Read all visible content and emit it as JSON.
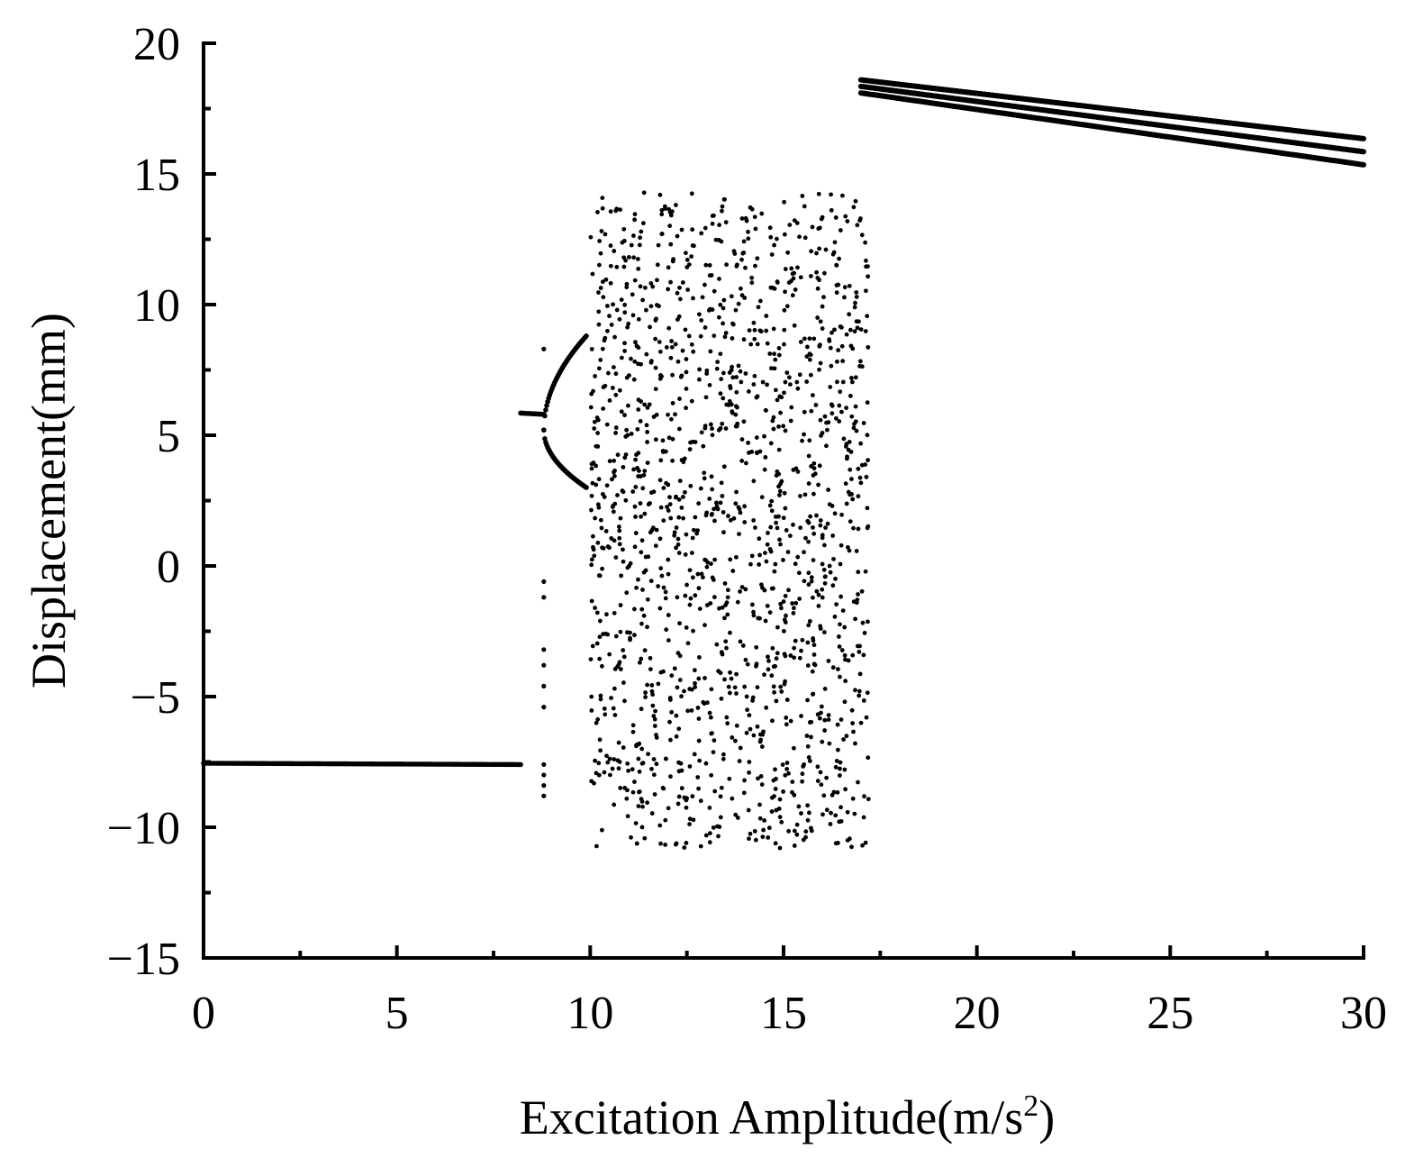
{
  "chart_data": {
    "type": "scatter",
    "title": "",
    "xlabel_main": "Excitation Amplitude(m/s",
    "xlabel_sup": "2",
    "xlabel_close": ")",
    "ylabel": "Displacement(mm)",
    "xlim": [
      0,
      30
    ],
    "ylim": [
      -15,
      20
    ],
    "x_ticks": [
      0,
      5,
      10,
      15,
      20,
      25,
      30
    ],
    "x_tick_labels": [
      "0",
      "5",
      "10",
      "15",
      "20",
      "25",
      "30"
    ],
    "y_ticks": [
      -15,
      -10,
      -5,
      0,
      5,
      10,
      15,
      20
    ],
    "y_tick_labels": [
      "−15",
      "−10",
      "−5",
      "0",
      "5",
      "10",
      "15",
      "20"
    ],
    "x_minor_step": 2.5,
    "y_minor_step": 2.5,
    "grid": false,
    "legend": "none",
    "marker_color": "#000000",
    "regions": [
      {
        "kind": "line",
        "x_range": [
          0,
          8.2
        ],
        "y_start": -7.55,
        "y_end": -7.6,
        "step": 0.05
      },
      {
        "kind": "line",
        "x_range": [
          8.2,
          8.8
        ],
        "y_start": 5.85,
        "y_end": 5.8,
        "step": 0.04
      },
      {
        "kind": "branch",
        "x_range": [
          8.8,
          9.9
        ],
        "y_root": 5.2,
        "y_upper_end": 8.8,
        "y_lower_end": 3.0,
        "step": 0.025
      },
      {
        "kind": "column",
        "x": 8.8,
        "y_values": [
          -8.8,
          -8.4,
          -8.0,
          -7.6,
          -5.4,
          -4.6,
          -3.8,
          -3.2,
          -1.2,
          -0.6,
          8.3
        ]
      },
      {
        "kind": "scatter",
        "x_range": [
          10.0,
          17.2
        ],
        "y_range": [
          -10.8,
          14.3
        ],
        "count": 1500
      },
      {
        "kind": "band",
        "x_range": [
          17.0,
          30.0
        ],
        "y_start": 18.35,
        "y_end": 15.85,
        "thickness_start": 0.5,
        "thickness_end": 1.0,
        "step": 0.02
      }
    ]
  }
}
